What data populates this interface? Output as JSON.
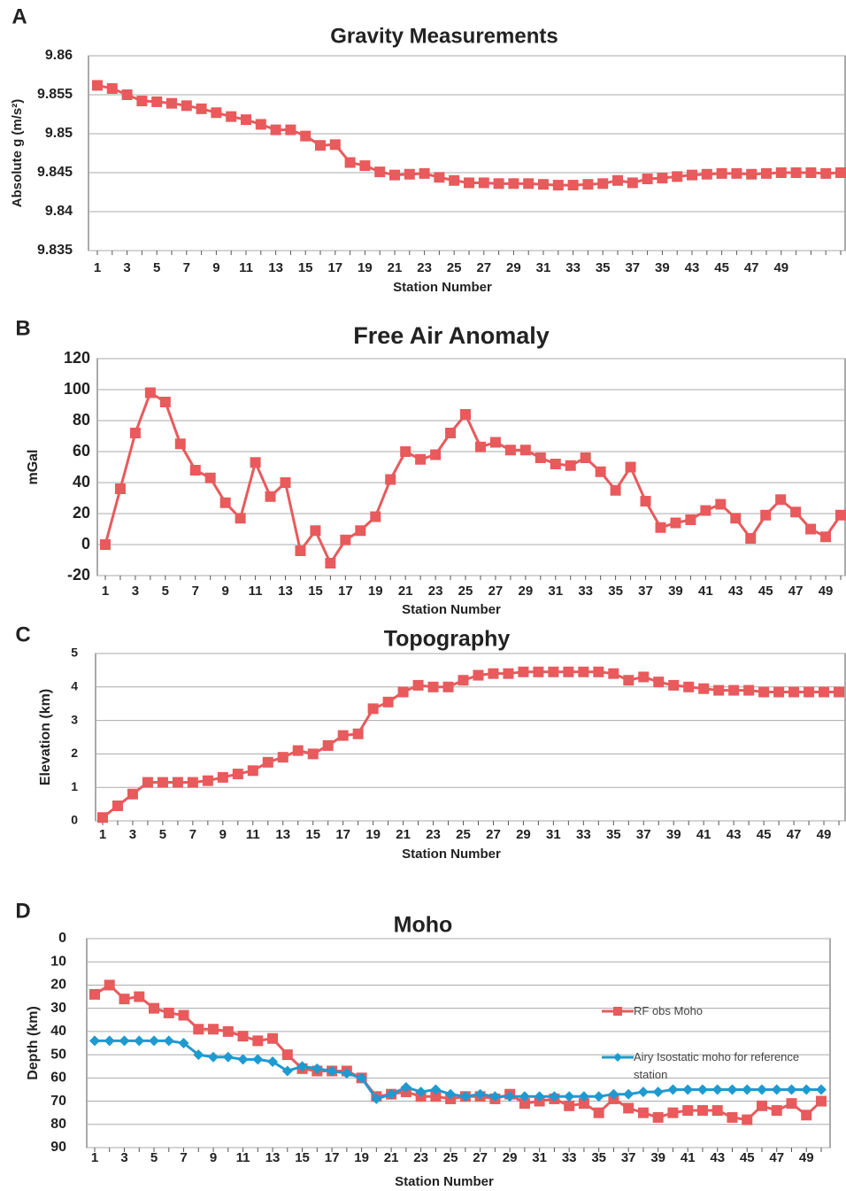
{
  "chart_data": [
    {
      "type": "line",
      "panel": "A",
      "title": "Gravity Measurements",
      "x_label": "Station Number",
      "y_label": "Absolute g (m/s²)",
      "categories": [
        1,
        null,
        3,
        null,
        5,
        null,
        7,
        null,
        9,
        null,
        11,
        null,
        13,
        null,
        15,
        null,
        17,
        null,
        19,
        null,
        21,
        null,
        23,
        null,
        25,
        null,
        27,
        null,
        29,
        null,
        31,
        null,
        33,
        null,
        35,
        null,
        37,
        null,
        39,
        null,
        43,
        null,
        45,
        null,
        47,
        null,
        49,
        null,
        null,
        null,
        null
      ],
      "values": [
        9.8562,
        9.8558,
        9.855,
        9.8542,
        9.8541,
        9.8539,
        9.8536,
        9.8532,
        9.8527,
        9.8522,
        9.8518,
        9.8512,
        9.8505,
        9.8505,
        9.8497,
        9.8485,
        9.8486,
        9.8463,
        9.8459,
        9.8451,
        9.8447,
        9.8448,
        9.8449,
        9.8444,
        9.844,
        9.8437,
        9.8437,
        9.8436,
        9.8436,
        9.8436,
        9.8435,
        9.8434,
        9.8434,
        9.8435,
        9.8436,
        9.844,
        9.8437,
        9.8442,
        9.8443,
        9.8445,
        9.8447,
        9.8448,
        9.8449,
        9.8449,
        9.8448,
        9.8449,
        9.845,
        9.845,
        9.845,
        9.8449,
        9.845
      ],
      "color": "#e85a5c",
      "marker": "square",
      "ylim": [
        9.835,
        9.86
      ],
      "yticks": [
        9.835,
        9.84,
        9.845,
        9.85,
        9.855,
        9.86
      ],
      "grid": true
    },
    {
      "type": "line",
      "panel": "B",
      "title": "Free Air Anomaly",
      "x_label": "Station Number",
      "y_label": "mGal",
      "categories": [
        1,
        null,
        3,
        null,
        5,
        null,
        7,
        null,
        9,
        null,
        11,
        null,
        13,
        null,
        15,
        null,
        17,
        null,
        19,
        null,
        21,
        null,
        23,
        null,
        25,
        null,
        27,
        null,
        29,
        null,
        31,
        null,
        33,
        null,
        35,
        null,
        37,
        null,
        39,
        null,
        41,
        null,
        43,
        null,
        45,
        null,
        47,
        null,
        49,
        null
      ],
      "values": [
        0,
        36,
        72,
        98,
        92,
        65,
        48,
        43,
        27,
        17,
        53,
        31,
        40,
        -4,
        9,
        -12,
        3,
        9,
        18,
        42,
        60,
        55,
        58,
        72,
        84,
        63,
        66,
        61,
        61,
        56,
        52,
        51,
        56,
        47,
        35,
        50,
        28,
        11,
        14,
        16,
        22,
        26,
        17,
        4,
        19,
        29,
        21,
        10,
        5,
        19
      ],
      "color": "#e85a5c",
      "marker": "square",
      "ylim": [
        -20,
        120
      ],
      "yticks": [
        -20,
        0,
        20,
        40,
        60,
        80,
        100,
        120
      ],
      "grid": true
    },
    {
      "type": "line",
      "panel": "C",
      "title": "Topography",
      "x_label": "Station Number",
      "y_label": "Elevation (km)",
      "categories": [
        1,
        null,
        3,
        null,
        5,
        null,
        7,
        null,
        9,
        null,
        11,
        null,
        13,
        null,
        15,
        null,
        17,
        null,
        19,
        null,
        21,
        null,
        23,
        null,
        25,
        null,
        27,
        null,
        29,
        null,
        31,
        null,
        33,
        null,
        35,
        null,
        37,
        null,
        39,
        null,
        41,
        null,
        43,
        null,
        45,
        null,
        47,
        null,
        49,
        null
      ],
      "values": [
        0.1,
        0.45,
        0.8,
        1.15,
        1.15,
        1.15,
        1.15,
        1.2,
        1.3,
        1.4,
        1.5,
        1.75,
        1.9,
        2.1,
        2.0,
        2.25,
        2.55,
        2.6,
        3.35,
        3.55,
        3.85,
        4.05,
        4.0,
        4.0,
        4.2,
        4.35,
        4.4,
        4.4,
        4.45,
        4.45,
        4.45,
        4.45,
        4.45,
        4.45,
        4.4,
        4.2,
        4.3,
        4.15,
        4.05,
        4.0,
        3.95,
        3.9,
        3.9,
        3.9,
        3.85,
        3.85,
        3.85,
        3.85,
        3.85,
        3.85
      ],
      "color": "#e85a5c",
      "marker": "square",
      "ylim": [
        0,
        5
      ],
      "yticks": [
        0,
        1,
        2,
        3,
        4,
        5
      ],
      "grid": true
    },
    {
      "type": "line",
      "panel": "D",
      "title": "Moho",
      "x_label": "Station Number",
      "y_label": "Depth (km)",
      "categories": [
        1,
        null,
        3,
        null,
        5,
        null,
        7,
        null,
        9,
        null,
        11,
        null,
        13,
        null,
        15,
        null,
        17,
        null,
        19,
        null,
        21,
        null,
        23,
        null,
        25,
        null,
        27,
        null,
        29,
        null,
        31,
        null,
        33,
        null,
        35,
        null,
        37,
        null,
        39,
        null,
        41,
        null,
        43,
        null,
        45,
        null,
        47,
        null,
        49,
        null
      ],
      "series": [
        {
          "name": "RF obs Moho",
          "color": "#e85a5c",
          "marker": "square",
          "values": [
            24,
            20,
            26,
            25,
            30,
            32,
            33,
            39,
            39,
            40,
            42,
            44,
            43,
            50,
            56,
            57,
            57,
            57,
            60,
            68,
            67,
            66,
            68,
            68,
            69,
            68,
            68,
            69,
            67,
            71,
            70,
            69,
            72,
            71,
            75,
            69,
            73,
            75,
            77,
            75,
            74,
            74,
            74,
            77,
            78,
            72,
            74,
            71,
            76,
            70
          ]
        },
        {
          "name": "Airy Isostatic moho for reference station",
          "color": "#1e9ad0",
          "marker": "diamond",
          "values": [
            44,
            44,
            44,
            44,
            44,
            44,
            45,
            50,
            51,
            51,
            52,
            52,
            53,
            57,
            55,
            56,
            57,
            58,
            60,
            69,
            67,
            64,
            66,
            65,
            67,
            68,
            67,
            68,
            68,
            68,
            68,
            68,
            68,
            68,
            68,
            67,
            67,
            66,
            66,
            65,
            65,
            65,
            65,
            65,
            65,
            65,
            65,
            65,
            65,
            65
          ]
        }
      ],
      "ylim": [
        0,
        90
      ],
      "y_inverted": true,
      "yticks": [
        0,
        10,
        20,
        30,
        40,
        50,
        60,
        70,
        80,
        90
      ],
      "grid": true,
      "legend": "right"
    }
  ]
}
